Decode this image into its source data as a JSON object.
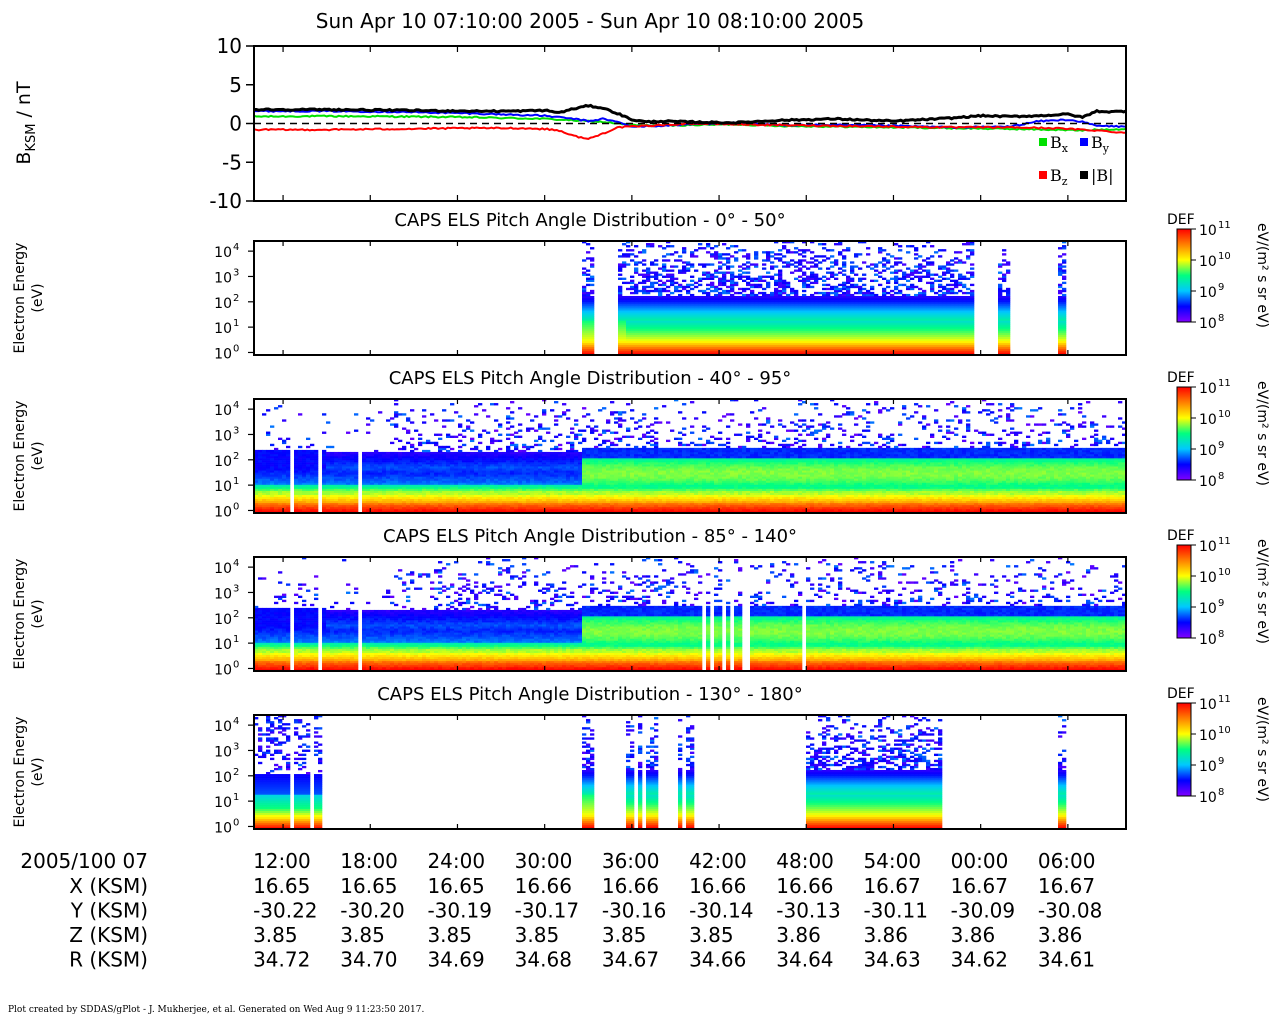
{
  "page": {
    "title": "Sun Apr 10 07:10:00 2005 - Sun Apr 10 08:10:00 2005",
    "footer": "Plot created by SDDAS/gPlot - J. Mukherjee, et al.  Generated on Wed Aug 9 11:23:50 2017."
  },
  "colors": {
    "bx": "#00e000",
    "by": "#0000ff",
    "bz": "#ff0000",
    "bmag": "#000000",
    "spectrogram_scale": [
      "#8000ff",
      "#0000ff",
      "#00c8ff",
      "#00ff80",
      "#ffff00",
      "#ff8000",
      "#ff0000"
    ]
  },
  "chart_data": [
    {
      "type": "line",
      "panel": "magnetic-field",
      "ylabel_main": "B",
      "ylabel_sub": "KSM",
      "ylabel_unit": " / nT",
      "ylim": [
        -10,
        10
      ],
      "yticks": [
        10,
        5,
        0,
        -5,
        -10
      ],
      "zero_line": true,
      "xlim_minutes": [
        0,
        60
      ],
      "legend": [
        {
          "key": "bx",
          "label": "B",
          "sub": "x"
        },
        {
          "key": "by",
          "label": "B",
          "sub": "y"
        },
        {
          "key": "bz",
          "label": "B",
          "sub": "z"
        },
        {
          "key": "bmag",
          "label": "|B|",
          "sub": ""
        }
      ],
      "series": [
        {
          "key": "bx",
          "x": [
            0,
            5,
            10,
            15,
            20,
            22,
            24,
            25,
            26,
            28,
            30,
            33,
            36,
            40,
            44,
            48,
            52,
            55,
            57,
            58,
            60
          ],
          "y": [
            0.9,
            0.95,
            0.9,
            0.8,
            0.6,
            0.4,
            0.2,
            0.0,
            -0.2,
            -0.3,
            -0.2,
            -0.1,
            -0.3,
            -0.4,
            -0.5,
            -0.6,
            -0.7,
            -0.8,
            -0.9,
            -0.8,
            -0.7
          ]
        },
        {
          "key": "by",
          "x": [
            0,
            5,
            10,
            15,
            20,
            22,
            23,
            24,
            25,
            26,
            28,
            30,
            33,
            36,
            40,
            44,
            48,
            52,
            54,
            56,
            57,
            58,
            60
          ],
          "y": [
            1.6,
            1.6,
            1.5,
            1.3,
            1.0,
            0.6,
            0.3,
            0.6,
            0.2,
            -0.4,
            -0.3,
            -0.1,
            0.1,
            -0.2,
            -0.2,
            -0.3,
            -0.5,
            -0.4,
            0.3,
            0.5,
            0.2,
            -0.3,
            -0.4
          ]
        },
        {
          "key": "bz",
          "x": [
            0,
            5,
            10,
            15,
            18,
            20,
            21,
            22,
            23,
            24,
            25,
            26,
            28,
            30,
            33,
            36,
            40,
            44,
            48,
            52,
            55,
            58,
            60
          ],
          "y": [
            -0.8,
            -0.8,
            -0.7,
            -0.6,
            -0.6,
            -0.7,
            -0.9,
            -1.6,
            -2.0,
            -1.3,
            -0.5,
            -0.4,
            -0.2,
            0.0,
            -0.1,
            -0.2,
            -0.3,
            -0.4,
            -0.5,
            -0.5,
            -0.6,
            -0.9,
            -1.2
          ]
        },
        {
          "key": "bmag",
          "x": [
            0,
            5,
            10,
            15,
            18,
            20,
            21,
            22,
            23,
            24,
            25,
            26,
            27,
            28,
            30,
            33,
            36,
            40,
            44,
            48,
            50,
            52,
            54,
            56,
            57,
            58,
            59,
            60
          ],
          "y": [
            1.8,
            1.8,
            1.7,
            1.6,
            1.6,
            1.7,
            1.4,
            1.9,
            2.3,
            2.0,
            1.3,
            0.5,
            0.2,
            0.3,
            0.2,
            0.1,
            0.4,
            0.6,
            0.3,
            0.7,
            1.0,
            0.9,
            1.0,
            1.2,
            0.8,
            1.6,
            1.5,
            1.6
          ]
        }
      ]
    },
    {
      "type": "heatmap",
      "panel": "els-0-50",
      "title": "CAPS ELS Pitch Angle Distribution - 0° - 50°",
      "ylabel": [
        "Electron Energy",
        "(eV)"
      ],
      "ylim_log10": [
        -0.1,
        4.4
      ],
      "ytick_exponents": [
        0,
        1,
        2,
        3,
        4
      ],
      "colorbar": {
        "label": "DEF",
        "unit": "eV/(m² s sr eV)",
        "tick_exponents": [
          11,
          10,
          9,
          8
        ],
        "range_log10": [
          8,
          11
        ]
      },
      "coverage_minutes": [
        [
          22.6,
          23.3
        ],
        [
          25.0,
          49.7
        ],
        [
          51.0,
          52.0
        ],
        [
          55.3,
          56.0
        ]
      ],
      "column_gaps_minutes": [
        49.7,
        51.0
      ]
    },
    {
      "type": "heatmap",
      "panel": "els-40-95",
      "title": "CAPS ELS Pitch Angle Distribution - 40° - 95°",
      "ylabel": [
        "Electron Energy",
        "(eV)"
      ],
      "ylim_log10": [
        -0.1,
        4.4
      ],
      "ytick_exponents": [
        0,
        1,
        2,
        3,
        4
      ],
      "colorbar": {
        "label": "DEF",
        "unit": "eV/(m² s sr eV)",
        "tick_exponents": [
          11,
          10,
          9,
          8
        ],
        "range_log10": [
          8,
          11
        ]
      },
      "coverage_minutes": [
        [
          0,
          60
        ]
      ],
      "column_gaps_minutes": [
        2.5,
        4.6,
        7.4
      ]
    },
    {
      "type": "heatmap",
      "panel": "els-85-140",
      "title": "CAPS ELS Pitch Angle Distribution - 85° - 140°",
      "ylabel": [
        "Electron Energy",
        "(eV)"
      ],
      "ylim_log10": [
        -0.1,
        4.4
      ],
      "ytick_exponents": [
        0,
        1,
        2,
        3,
        4
      ],
      "colorbar": {
        "label": "DEF",
        "unit": "eV/(m² s sr eV)",
        "tick_exponents": [
          11,
          10,
          9,
          8
        ],
        "range_log10": [
          8,
          11
        ]
      },
      "coverage_minutes": [
        [
          0,
          60
        ]
      ],
      "column_gaps_minutes": [
        2.5,
        4.6,
        7.4,
        31.0,
        31.4,
        32.4,
        33.0,
        33.6,
        34.1,
        37.9
      ]
    },
    {
      "type": "heatmap",
      "panel": "els-130-180",
      "title": "CAPS ELS Pitch Angle Distribution - 130° - 180°",
      "ylabel": [
        "Electron Energy",
        "(eV)"
      ],
      "ylim_log10": [
        -0.1,
        4.4
      ],
      "ytick_exponents": [
        0,
        1,
        2,
        3,
        4
      ],
      "colorbar": {
        "label": "DEF",
        "unit": "eV/(m² s sr eV)",
        "tick_exponents": [
          11,
          10,
          9,
          8
        ],
        "range_log10": [
          8,
          11
        ]
      },
      "coverage_minutes": [
        [
          0,
          4.6
        ],
        [
          22.6,
          23.3
        ],
        [
          25.6,
          27.8
        ],
        [
          29.1,
          29.4
        ],
        [
          29.6,
          30.3
        ],
        [
          38.1,
          47.4
        ],
        [
          55.3,
          56.0
        ]
      ],
      "column_gaps_minutes": [
        2.5,
        4.0,
        26.3,
        26.9
      ]
    }
  ],
  "time_axis": {
    "row_label": "2005/100 07",
    "xlim_minutes": [
      0,
      60
    ],
    "ticks": [
      {
        "minute": 2,
        "label": "12:00"
      },
      {
        "minute": 8,
        "label": "18:00"
      },
      {
        "minute": 14,
        "label": "24:00"
      },
      {
        "minute": 20,
        "label": "30:00"
      },
      {
        "minute": 26,
        "label": "36:00"
      },
      {
        "minute": 32,
        "label": "42:00"
      },
      {
        "minute": 38,
        "label": "48:00"
      },
      {
        "minute": 44,
        "label": "54:00"
      },
      {
        "minute": 50,
        "label": "00:00"
      },
      {
        "minute": 56,
        "label": "06:00"
      }
    ],
    "ephemeris": [
      {
        "label": "X (KSM)",
        "values": [
          "16.65",
          "16.65",
          "16.65",
          "16.66",
          "16.66",
          "16.66",
          "16.66",
          "16.67",
          "16.67",
          "16.67"
        ]
      },
      {
        "label": "Y (KSM)",
        "values": [
          "-30.22",
          "-30.20",
          "-30.19",
          "-30.17",
          "-30.16",
          "-30.14",
          "-30.13",
          "-30.11",
          "-30.09",
          "-30.08"
        ]
      },
      {
        "label": "Z (KSM)",
        "values": [
          "3.85",
          "3.85",
          "3.85",
          "3.85",
          "3.85",
          "3.85",
          "3.86",
          "3.86",
          "3.86",
          "3.86"
        ]
      },
      {
        "label": "R (KSM)",
        "values": [
          "34.72",
          "34.70",
          "34.69",
          "34.68",
          "34.67",
          "34.66",
          "34.64",
          "34.63",
          "34.62",
          "34.61"
        ]
      }
    ]
  }
}
